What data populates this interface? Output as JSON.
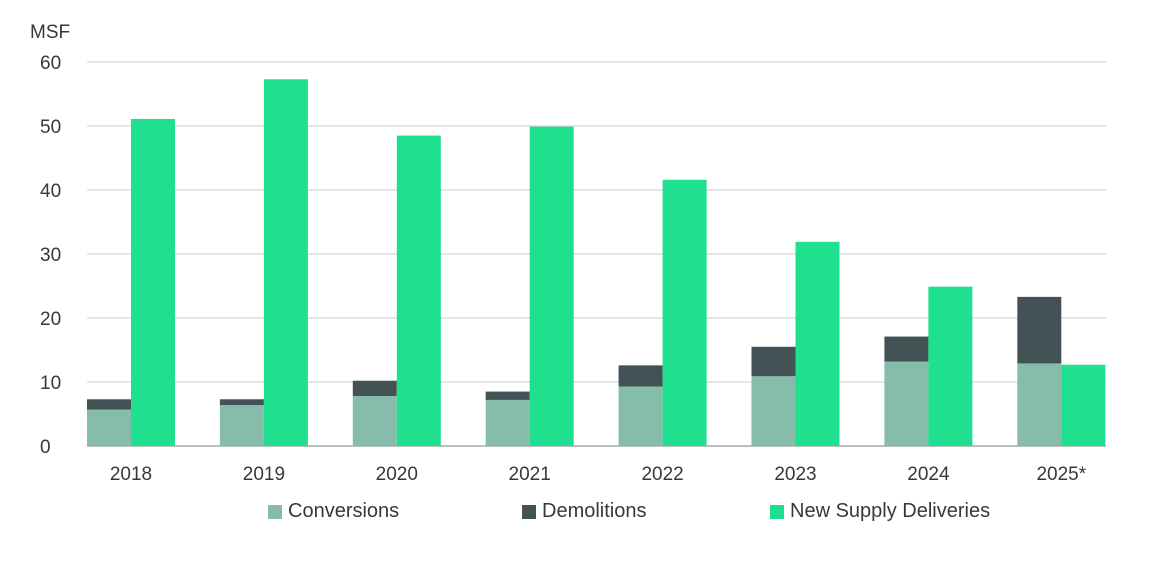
{
  "chart_data": {
    "type": "bar",
    "ylabel": "MSF",
    "ylim": [
      0,
      60
    ],
    "yticks": [
      0,
      10,
      20,
      30,
      40,
      50,
      60
    ],
    "grid": true,
    "legend_placement": "bottom",
    "categories": [
      "2018",
      "2019",
      "2020",
      "2021",
      "2022",
      "2023",
      "2024",
      "2025*"
    ],
    "series": [
      {
        "name": "Conversions",
        "color": "#86bdaa",
        "stack": "removed",
        "values": [
          5.7,
          6.4,
          7.8,
          7.2,
          9.3,
          10.9,
          13.2,
          12.9
        ]
      },
      {
        "name": "Demolitions",
        "color": "#435254",
        "stack": "removed",
        "values": [
          1.6,
          0.9,
          2.4,
          1.3,
          3.3,
          4.6,
          3.9,
          10.4
        ]
      },
      {
        "name": "New Supply Deliveries",
        "color": "#1ee08f",
        "stack": "new",
        "values": [
          51.1,
          57.3,
          48.5,
          49.9,
          41.6,
          31.9,
          24.9,
          12.7
        ]
      }
    ]
  }
}
